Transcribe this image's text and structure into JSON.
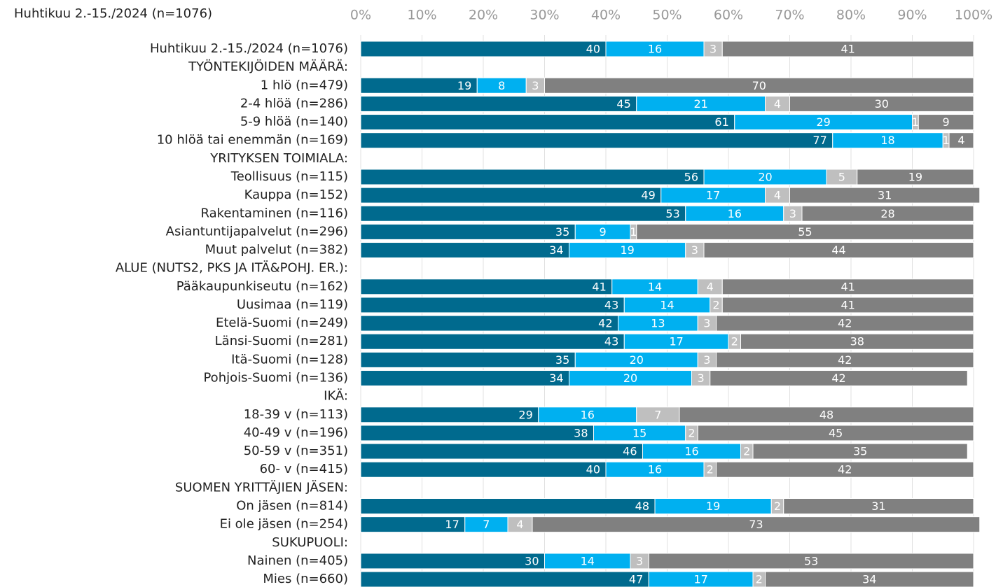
{
  "chart_data": {
    "type": "stacked-barh",
    "title": "Huhtikuu 2.-15./2024 (n=1076)",
    "categories": [
      "Huhtikuu 2.-15./2024 (n=1076)",
      "TYÖNTEKIJÖIDEN MÄÄRÄ:",
      "1 hlö (n=479)",
      "2-4 hlöä (n=286)",
      "5-9 hlöä (n=140)",
      "10 hlöä tai enemmän (n=169)",
      "YRITYKSEN TOIMIALA:",
      "Teollisuus (n=115)",
      "Kauppa (n=152)",
      "Rakentaminen (n=116)",
      "Asiantuntijapalvelut (n=296)",
      "Muut palvelut (n=382)",
      "ALUE (NUTS2, PKS JA ITÄ&POHJ. ER.):",
      "Pääkaupunkiseutu (n=162)",
      "Uusimaa (n=119)",
      "Etelä-Suomi (n=249)",
      "Länsi-Suomi (n=281)",
      "Itä-Suomi (n=128)",
      "Pohjois-Suomi (n=136)",
      "IKÄ:",
      "18-39 v (n=113)",
      "40-49 v (n=196)",
      "50-59 v (n=351)",
      "60- v (n=415)",
      "SUOMEN YRITTÄJIEN JÄSEN:",
      "On jäsen (n=814)",
      "Ei ole jäsen (n=254)",
      "SUKUPUOLI:",
      "Nainen (n=405)",
      "Mies (n=660)"
    ],
    "series": [
      {
        "color": "#006a8e",
        "values": [
          40,
          null,
          19,
          45,
          61,
          77,
          null,
          56,
          49,
          53,
          35,
          34,
          null,
          41,
          43,
          42,
          43,
          35,
          34,
          null,
          29,
          38,
          46,
          40,
          null,
          48,
          17,
          null,
          30,
          47
        ]
      },
      {
        "color": "#00b0f0",
        "values": [
          16,
          null,
          8,
          21,
          29,
          18,
          null,
          20,
          17,
          16,
          9,
          19,
          null,
          14,
          14,
          13,
          17,
          20,
          20,
          null,
          16,
          15,
          16,
          16,
          null,
          19,
          7,
          null,
          14,
          17
        ]
      },
      {
        "color": "#bfbfbf",
        "values": [
          3,
          null,
          3,
          4,
          1,
          1,
          null,
          5,
          4,
          3,
          1,
          3,
          null,
          4,
          2,
          3,
          2,
          3,
          3,
          null,
          7,
          2,
          2,
          2,
          null,
          2,
          4,
          null,
          3,
          2
        ]
      },
      {
        "color": "#808080",
        "values": [
          41,
          null,
          70,
          30,
          9,
          4,
          null,
          19,
          31,
          28,
          55,
          44,
          null,
          41,
          41,
          42,
          38,
          42,
          42,
          null,
          48,
          45,
          35,
          42,
          null,
          31,
          73,
          null,
          53,
          34
        ]
      }
    ],
    "xlim": [
      0,
      100
    ],
    "xticks": [
      {
        "value": 0,
        "label": "0%"
      },
      {
        "value": 10,
        "label": "10%"
      },
      {
        "value": 20,
        "label": "20%"
      },
      {
        "value": 30,
        "label": "30%"
      },
      {
        "value": 40,
        "label": "40%"
      },
      {
        "value": 50,
        "label": "50%"
      },
      {
        "value": 60,
        "label": "60%"
      },
      {
        "value": 70,
        "label": "70%"
      },
      {
        "value": 80,
        "label": "80%"
      },
      {
        "value": 90,
        "label": "90%"
      },
      {
        "value": 100,
        "label": "100%"
      }
    ],
    "grid": true
  }
}
